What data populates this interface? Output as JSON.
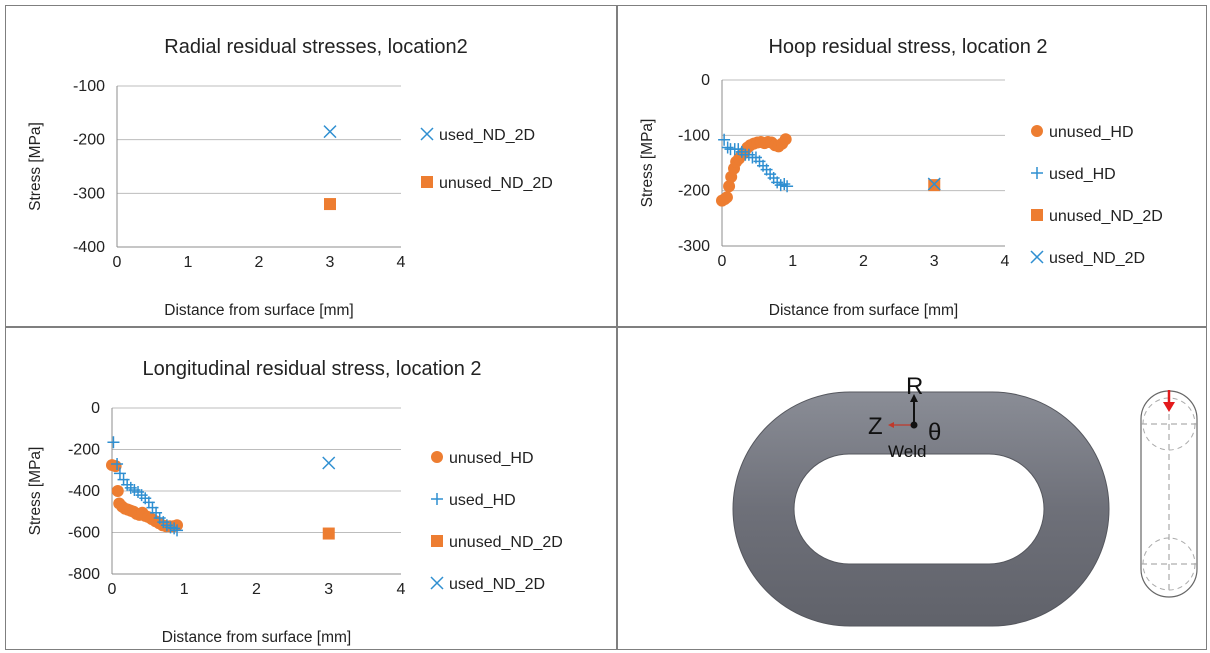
{
  "chart_data": [
    {
      "type": "scatter",
      "title": "Radial residual stresses, location2",
      "xlabel": "Distance from surface [mm]",
      "ylabel": "Stress [MPa]",
      "xlim": [
        0,
        4
      ],
      "ylim": [
        -400,
        -100
      ],
      "xticks": [
        0,
        1,
        2,
        3,
        4
      ],
      "yticks": [
        -100,
        -200,
        -300,
        -400
      ],
      "grid": "horizontal",
      "legend_position": "right",
      "series": [
        {
          "name": "used_ND_2D",
          "marker": "x",
          "color": "#2f8fd1",
          "points": [
            [
              3,
              -185
            ]
          ]
        },
        {
          "name": "unused_ND_2D",
          "marker": "square",
          "color": "#ed7d31",
          "points": [
            [
              3,
              -320
            ]
          ]
        }
      ]
    },
    {
      "type": "scatter",
      "title": "Hoop residual stress, location 2",
      "xlabel": "Distance from surface [mm]",
      "ylabel": "Stress [MPa]",
      "xlim": [
        0,
        4
      ],
      "ylim": [
        -300,
        0
      ],
      "xticks": [
        0,
        1,
        2,
        3,
        4
      ],
      "yticks": [
        0,
        -100,
        -200,
        -300
      ],
      "grid": "horizontal",
      "legend_position": "right",
      "series": [
        {
          "name": "unused_HD",
          "marker": "circle",
          "color": "#ed7d31",
          "points": [
            [
              0,
              -218
            ],
            [
              0.04,
              -215
            ],
            [
              0.07,
              -212
            ],
            [
              0.1,
              -192
            ],
            [
              0.13,
              -175
            ],
            [
              0.17,
              -160
            ],
            [
              0.2,
              -148
            ],
            [
              0.24,
              -142
            ],
            [
              0.28,
              -135
            ],
            [
              0.32,
              -130
            ],
            [
              0.36,
              -122
            ],
            [
              0.4,
              -118
            ],
            [
              0.45,
              -115
            ],
            [
              0.5,
              -113
            ],
            [
              0.55,
              -112
            ],
            [
              0.6,
              -114
            ],
            [
              0.65,
              -112
            ],
            [
              0.7,
              -113
            ],
            [
              0.75,
              -118
            ],
            [
              0.8,
              -120
            ],
            [
              0.85,
              -115
            ],
            [
              0.9,
              -107
            ]
          ]
        },
        {
          "name": "used_HD",
          "marker": "plus",
          "color": "#2f8fd1",
          "points": [
            [
              0.03,
              -108
            ],
            [
              0.08,
              -122
            ],
            [
              0.12,
              -125
            ],
            [
              0.18,
              -125
            ],
            [
              0.23,
              -125
            ],
            [
              0.28,
              -130
            ],
            [
              0.33,
              -135
            ],
            [
              0.38,
              -135
            ],
            [
              0.43,
              -140
            ],
            [
              0.48,
              -140
            ],
            [
              0.53,
              -147
            ],
            [
              0.58,
              -155
            ],
            [
              0.63,
              -162
            ],
            [
              0.68,
              -170
            ],
            [
              0.73,
              -177
            ],
            [
              0.78,
              -185
            ],
            [
              0.83,
              -190
            ],
            [
              0.88,
              -188
            ],
            [
              0.92,
              -192
            ]
          ]
        },
        {
          "name": "unused_ND_2D",
          "marker": "square",
          "color": "#ed7d31",
          "points": [
            [
              3,
              -190
            ]
          ]
        },
        {
          "name": "used_ND_2D",
          "marker": "x",
          "color": "#2f8fd1",
          "points": [
            [
              3,
              -188
            ]
          ]
        }
      ]
    },
    {
      "type": "scatter",
      "title": "Longitudinal residual stress, location 2",
      "xlabel": "Distance from surface [mm]",
      "ylabel": "Stress [MPa]",
      "xlim": [
        0,
        4
      ],
      "ylim": [
        -800,
        0
      ],
      "xticks": [
        0,
        1,
        2,
        3,
        4
      ],
      "yticks": [
        0,
        -200,
        -400,
        -600,
        -800
      ],
      "grid": "horizontal",
      "legend_position": "right",
      "series": [
        {
          "name": "unused_HD",
          "marker": "circle",
          "color": "#ed7d31",
          "points": [
            [
              0,
              -275
            ],
            [
              0.05,
              -280
            ],
            [
              0.08,
              -400
            ],
            [
              0.1,
              -460
            ],
            [
              0.14,
              -475
            ],
            [
              0.18,
              -485
            ],
            [
              0.22,
              -490
            ],
            [
              0.26,
              -495
            ],
            [
              0.3,
              -500
            ],
            [
              0.34,
              -510
            ],
            [
              0.38,
              -515
            ],
            [
              0.42,
              -505
            ],
            [
              0.46,
              -520
            ],
            [
              0.5,
              -525
            ],
            [
              0.55,
              -535
            ],
            [
              0.6,
              -545
            ],
            [
              0.65,
              -555
            ],
            [
              0.7,
              -565
            ],
            [
              0.75,
              -570
            ],
            [
              0.8,
              -570
            ],
            [
              0.85,
              -570
            ],
            [
              0.9,
              -565
            ]
          ]
        },
        {
          "name": "used_HD",
          "marker": "plus",
          "color": "#2f8fd1",
          "points": [
            [
              0.02,
              -165
            ],
            [
              0.07,
              -270
            ],
            [
              0.11,
              -315
            ],
            [
              0.16,
              -345
            ],
            [
              0.21,
              -370
            ],
            [
              0.26,
              -385
            ],
            [
              0.31,
              -395
            ],
            [
              0.36,
              -405
            ],
            [
              0.41,
              -420
            ],
            [
              0.46,
              -435
            ],
            [
              0.51,
              -455
            ],
            [
              0.56,
              -480
            ],
            [
              0.61,
              -505
            ],
            [
              0.66,
              -530
            ],
            [
              0.71,
              -550
            ],
            [
              0.76,
              -565
            ],
            [
              0.81,
              -575
            ],
            [
              0.86,
              -580
            ],
            [
              0.9,
              -590
            ]
          ]
        },
        {
          "name": "unused_ND_2D",
          "marker": "square",
          "color": "#ed7d31",
          "points": [
            [
              3,
              -605
            ]
          ]
        },
        {
          "name": "used_ND_2D",
          "marker": "x",
          "color": "#2f8fd1",
          "points": [
            [
              3,
              -265
            ]
          ]
        }
      ]
    }
  ],
  "diagram": {
    "axis_r": "R",
    "axis_z": "Z",
    "axis_theta": "θ",
    "weld_label": "Weld",
    "ring_color": "#727580",
    "arrow_color": "#e31a1c"
  }
}
